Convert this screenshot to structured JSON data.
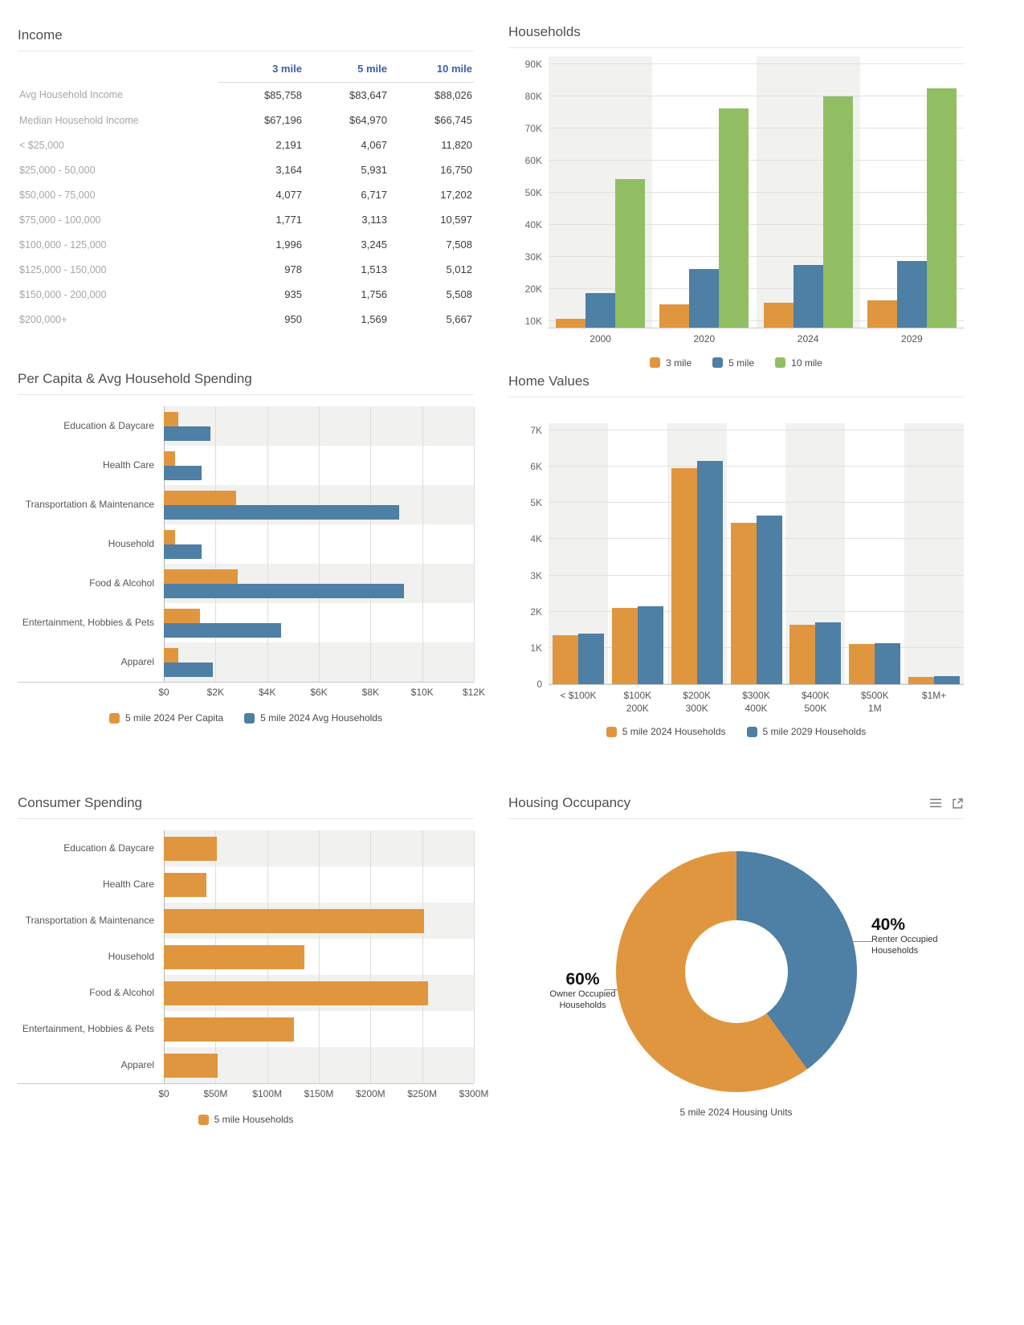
{
  "colors": {
    "orange": "#E0963F",
    "blue": "#4E7FA4",
    "green": "#92BE63",
    "header_blue": "#3E5DA9"
  },
  "income": {
    "title": "Income",
    "columns": [
      "3 mile",
      "5 mile",
      "10 mile"
    ],
    "rows": [
      {
        "label": "Avg Household Income",
        "values": [
          "$85,758",
          "$83,647",
          "$88,026"
        ]
      },
      {
        "label": "Median Household Income",
        "values": [
          "$67,196",
          "$64,970",
          "$66,745"
        ]
      },
      {
        "label": "< $25,000",
        "values": [
          "2,191",
          "4,067",
          "11,820"
        ]
      },
      {
        "label": "$25,000 - 50,000",
        "values": [
          "3,164",
          "5,931",
          "16,750"
        ]
      },
      {
        "label": "$50,000 - 75,000",
        "values": [
          "4,077",
          "6,717",
          "17,202"
        ]
      },
      {
        "label": "$75,000 - 100,000",
        "values": [
          "1,771",
          "3,113",
          "10,597"
        ]
      },
      {
        "label": "$100,000 - 125,000",
        "values": [
          "1,996",
          "3,245",
          "7,508"
        ]
      },
      {
        "label": "$125,000 - 150,000",
        "values": [
          "978",
          "1,513",
          "5,012"
        ]
      },
      {
        "label": "$150,000 - 200,000",
        "values": [
          "935",
          "1,756",
          "5,508"
        ]
      },
      {
        "label": "$200,000+",
        "values": [
          "950",
          "1,569",
          "5,667"
        ]
      }
    ]
  },
  "chart_data": [
    {
      "id": "households",
      "type": "bar",
      "title": "Households",
      "categories": [
        "2000",
        "2020",
        "2024",
        "2029"
      ],
      "series": [
        {
          "name": "3 mile",
          "color_key": "orange",
          "values": [
            10800,
            15300,
            15800,
            16400
          ]
        },
        {
          "name": "5 mile",
          "color_key": "blue",
          "values": [
            18700,
            26300,
            27600,
            28700
          ]
        },
        {
          "name": "10 mile",
          "color_key": "green",
          "values": [
            54300,
            76300,
            80000,
            82600
          ]
        }
      ],
      "y_min": 8000,
      "y_max": 92500,
      "y_ticks": [
        {
          "value": 10000,
          "label": "10K"
        },
        {
          "value": 20000,
          "label": "20K"
        },
        {
          "value": 30000,
          "label": "30K"
        },
        {
          "value": 40000,
          "label": "40K"
        },
        {
          "value": 50000,
          "label": "50K"
        },
        {
          "value": 60000,
          "label": "60K"
        },
        {
          "value": 70000,
          "label": "70K"
        },
        {
          "value": 80000,
          "label": "80K"
        },
        {
          "value": 90000,
          "label": "90K"
        }
      ],
      "grid": true,
      "legend_position": "bottom"
    },
    {
      "id": "percapita",
      "type": "bar-horizontal",
      "title": "Per Capita & Avg Household Spending",
      "categories": [
        "Education & Daycare",
        "Health Care",
        "Transportation & Maintenance",
        "Household",
        "Food & Alcohol",
        "Entertainment, Hobbies & Pets",
        "Apparel"
      ],
      "series": [
        {
          "name": "5 mile 2024 Per Capita",
          "color_key": "orange",
          "values": [
            550,
            450,
            2800,
            450,
            2850,
            1400,
            575
          ]
        },
        {
          "name": "5 mile 2024 Avg Households",
          "color_key": "blue",
          "values": [
            1800,
            1450,
            9100,
            1450,
            9300,
            4550,
            1900
          ]
        }
      ],
      "x_max": 12000,
      "x_ticks": [
        {
          "value": 0,
          "label": "$0"
        },
        {
          "value": 2000,
          "label": "$2K"
        },
        {
          "value": 4000,
          "label": "$4K"
        },
        {
          "value": 6000,
          "label": "$6K"
        },
        {
          "value": 8000,
          "label": "$8K"
        },
        {
          "value": 10000,
          "label": "$10K"
        },
        {
          "value": 12000,
          "label": "$12K"
        }
      ],
      "grid": true,
      "legend_position": "bottom"
    },
    {
      "id": "homevalues",
      "type": "bar",
      "title": "Home Values",
      "categories": [
        "< $100K",
        "$100K\n200K",
        "$200K\n300K",
        "$300K\n400K",
        "$400K\n500K",
        "$500K\n1M",
        "$1M+"
      ],
      "series": [
        {
          "name": "5 mile 2024 Households",
          "color_key": "orange",
          "values": [
            1350,
            2100,
            5950,
            4450,
            1650,
            1100,
            200
          ]
        },
        {
          "name": "5 mile 2029 Households",
          "color_key": "blue",
          "values": [
            1400,
            2150,
            6150,
            4650,
            1700,
            1130,
            220
          ]
        }
      ],
      "y_min": 0,
      "y_max": 7200,
      "y_ticks": [
        {
          "value": 0,
          "label": "0"
        },
        {
          "value": 1000,
          "label": "1K"
        },
        {
          "value": 2000,
          "label": "2K"
        },
        {
          "value": 3000,
          "label": "3K"
        },
        {
          "value": 4000,
          "label": "4K"
        },
        {
          "value": 5000,
          "label": "5K"
        },
        {
          "value": 6000,
          "label": "6K"
        },
        {
          "value": 7000,
          "label": "7K"
        }
      ],
      "grid": true,
      "legend_position": "bottom"
    },
    {
      "id": "consumer",
      "type": "bar-horizontal",
      "title": "Consumer Spending",
      "categories": [
        "Education & Daycare",
        "Health Care",
        "Transportation & Maintenance",
        "Household",
        "Food & Alcohol",
        "Entertainment, Hobbies & Pets",
        "Apparel"
      ],
      "series": [
        {
          "name": "5 mile Households",
          "color_key": "orange",
          "values": [
            51,
            41,
            252,
            136,
            256,
            126,
            52
          ]
        }
      ],
      "x_max": 300,
      "x_ticks": [
        {
          "value": 0,
          "label": "$0"
        },
        {
          "value": 50,
          "label": "$50M"
        },
        {
          "value": 100,
          "label": "$100M"
        },
        {
          "value": 150,
          "label": "$150M"
        },
        {
          "value": 200,
          "label": "$200M"
        },
        {
          "value": 250,
          "label": "$250M"
        },
        {
          "value": 300,
          "label": "$300M"
        }
      ],
      "grid": true,
      "legend_position": "bottom"
    },
    {
      "id": "occupancy",
      "type": "donut",
      "title": "Housing Occupancy",
      "slices": [
        {
          "pct": 40,
          "pct_label": "40%",
          "label": "Renter Occupied\nHouseholds",
          "color_key": "blue"
        },
        {
          "pct": 60,
          "pct_label": "60%",
          "label": "Owner Occupied\nHouseholds",
          "color_key": "orange"
        }
      ],
      "caption": "5 mile 2024 Housing Units",
      "header_icons": [
        "menu-icon",
        "export-icon"
      ]
    }
  ]
}
